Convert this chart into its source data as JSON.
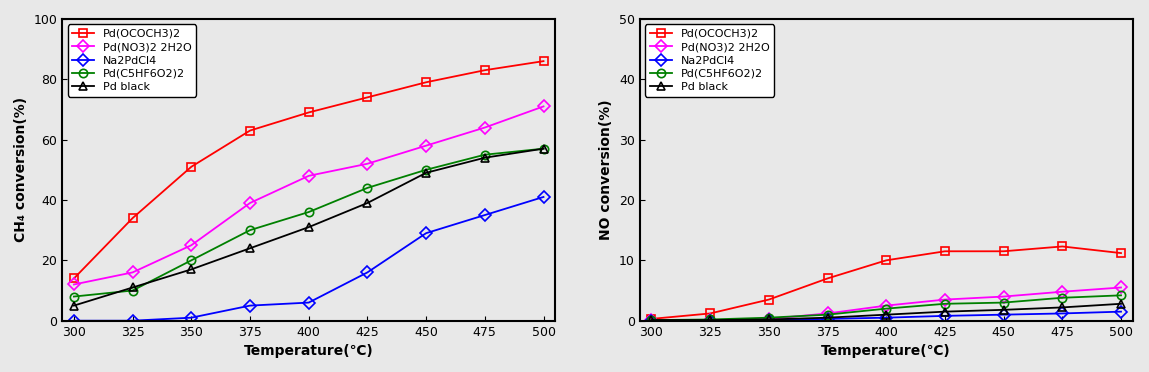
{
  "temperatures": [
    300,
    325,
    350,
    375,
    400,
    425,
    450,
    475,
    500
  ],
  "ch4_data": {
    "Pd(OCOCH3)2": [
      14,
      34,
      51,
      63,
      69,
      74,
      79,
      83,
      86
    ],
    "Pd(NO3)2 2H2O": [
      12,
      16,
      25,
      39,
      48,
      52,
      58,
      64,
      71
    ],
    "Na2PdCl4": [
      0,
      0,
      1,
      5,
      6,
      16,
      29,
      35,
      41
    ],
    "Pd(C5HF6O2)2": [
      8,
      10,
      20,
      30,
      36,
      44,
      50,
      55,
      57
    ],
    "Pd black": [
      5,
      11,
      17,
      24,
      31,
      39,
      49,
      54,
      57
    ]
  },
  "no_data": {
    "Pd(OCOCH3)2": [
      0.3,
      1.2,
      3.5,
      7.0,
      10.0,
      11.5,
      11.5,
      12.3,
      11.2
    ],
    "Pd(NO3)2 2H2O": [
      0.1,
      0.1,
      0.3,
      1.2,
      2.5,
      3.5,
      4.0,
      4.8,
      5.5
    ],
    "Na2PdCl4": [
      0.0,
      0.0,
      0.1,
      0.3,
      0.5,
      0.8,
      1.0,
      1.2,
      1.5
    ],
    "Pd(C5HF6O2)2": [
      0.1,
      0.2,
      0.5,
      1.0,
      2.0,
      2.8,
      3.0,
      3.8,
      4.2
    ],
    "Pd black": [
      0.1,
      0.1,
      0.2,
      0.5,
      1.0,
      1.5,
      1.8,
      2.2,
      2.8
    ]
  },
  "colors": {
    "Pd(OCOCH3)2": "#ff0000",
    "Pd(NO3)2 2H2O": "#ff00ff",
    "Na2PdCl4": "#0000ff",
    "Pd(C5HF6O2)2": "#008000",
    "Pd black": "#000000"
  },
  "markers": {
    "Pd(OCOCH3)2": "s",
    "Pd(NO3)2 2H2O": "D",
    "Na2PdCl4": "D",
    "Pd(C5HF6O2)2": "o",
    "Pd black": "^"
  },
  "ch4_ylabel": "CH₄ conversion(%)",
  "no_ylabel": "NO conversion(%)",
  "xlabel": "Temperature(℃)",
  "ch4_ylim": [
    0,
    100
  ],
  "no_ylim": [
    0,
    50
  ],
  "ch4_yticks": [
    0,
    20,
    40,
    60,
    80,
    100
  ],
  "no_yticks": [
    0,
    10,
    20,
    30,
    40,
    50
  ],
  "xticks": [
    300,
    325,
    350,
    375,
    400,
    425,
    450,
    475,
    500
  ],
  "markersize": 6,
  "linewidth": 1.3,
  "legend_fontsize": 8,
  "axis_fontsize": 10,
  "tick_fontsize": 9,
  "bg_color": "#e8e8e8"
}
